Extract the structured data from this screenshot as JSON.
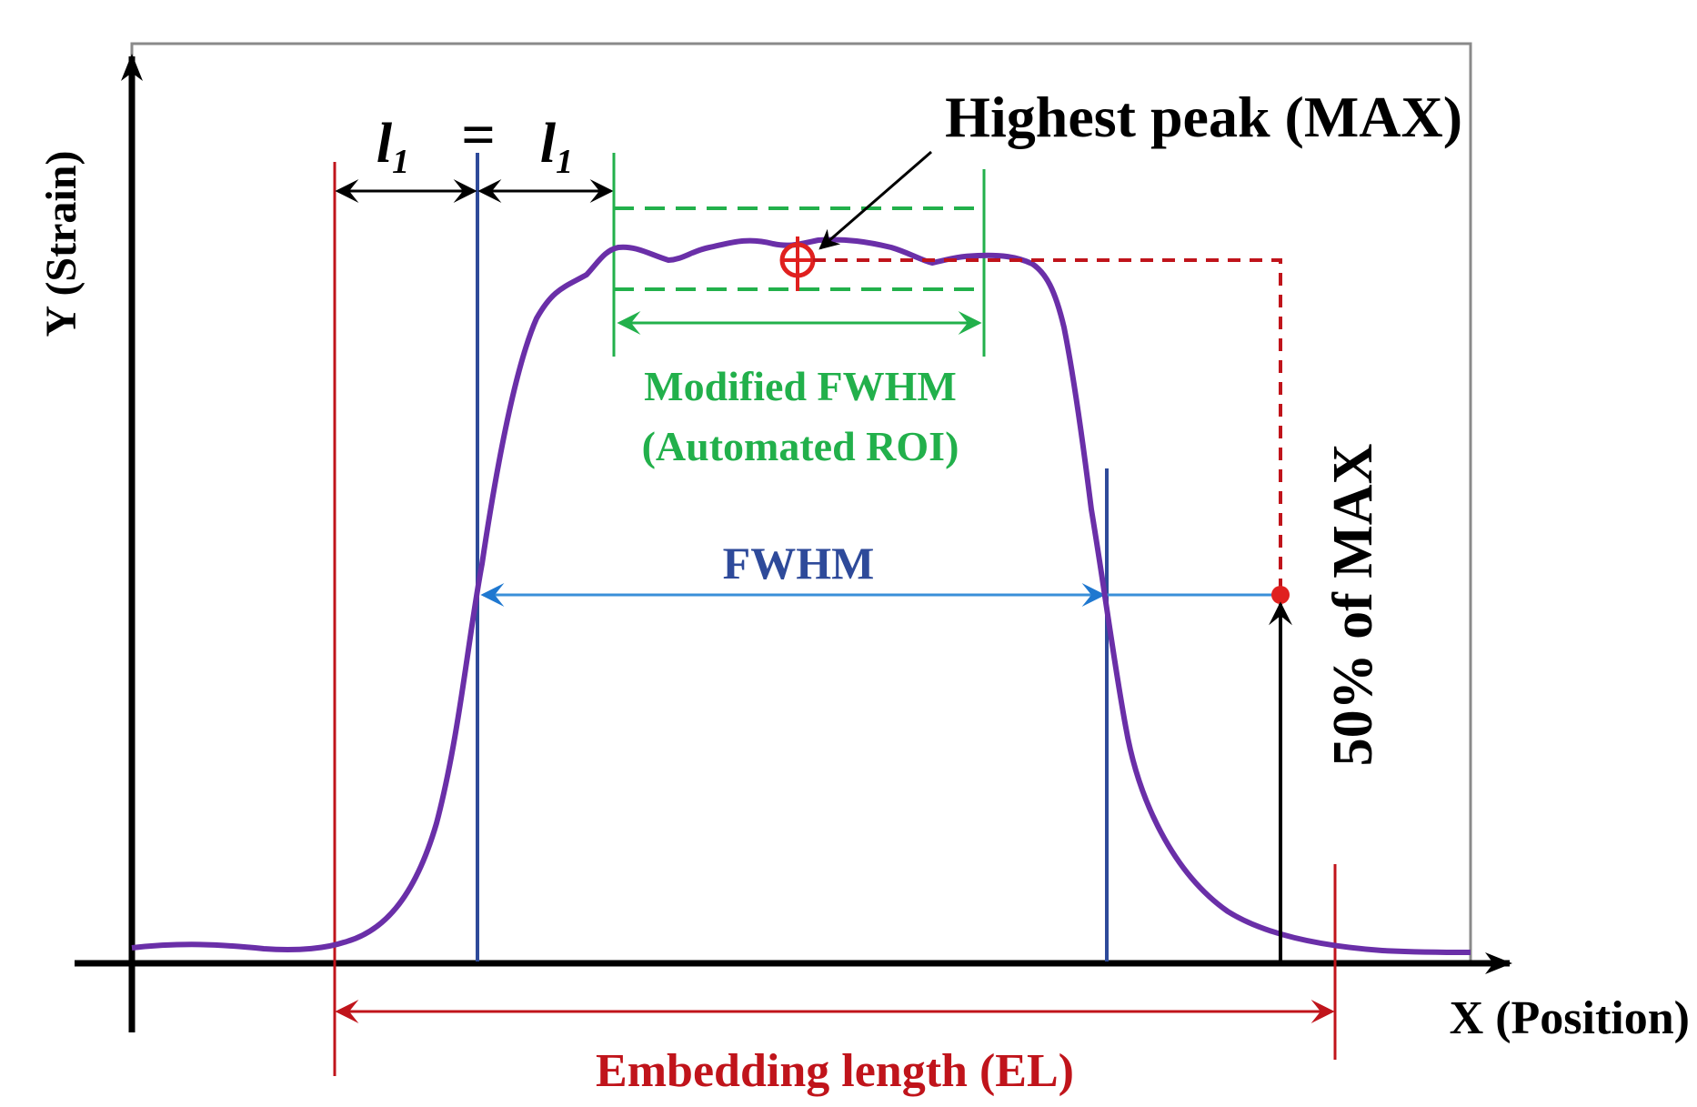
{
  "figure": {
    "y_axis_label": "Y (Strain)",
    "x_axis_label": "X (Position)",
    "peak_label": "Highest peak (MAX)",
    "modified_fwhm_label_line1": "Modified FWHM",
    "modified_fwhm_label_line2": "(Automated ROI)",
    "fwhm_label": "FWHM",
    "half_max_label": "50% of MAX",
    "embedding_length_label": "Embedding length (EL)",
    "offset_symbol": "l",
    "offset_subscript": "1",
    "equals_sign": "="
  },
  "colors": {
    "curve": "#6a2fa8",
    "embedding": "#c0141b",
    "fwhm_marker": "#2e4a9a",
    "fwhm_arrow": "#3a8fd8",
    "modified": "#22b04b",
    "peak_marker": "#e0201f",
    "axis": "#000000",
    "frame": "#8a8a8a"
  }
}
